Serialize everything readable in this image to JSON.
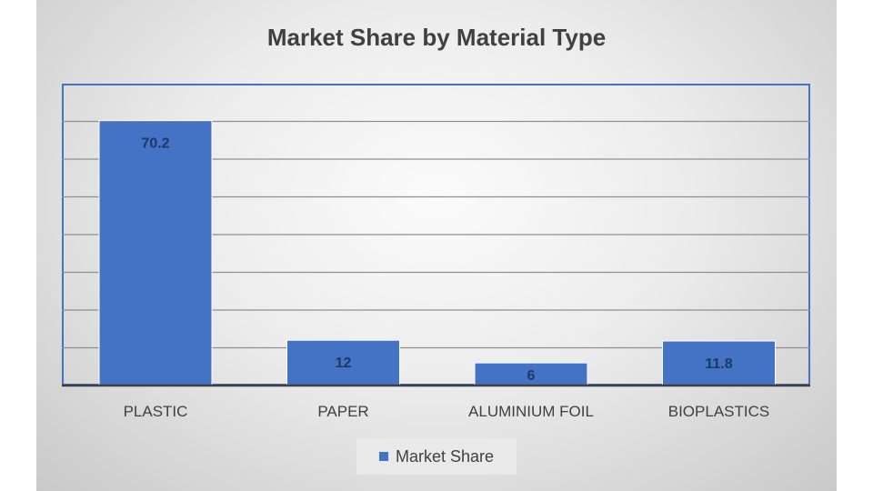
{
  "chart_data": {
    "type": "bar",
    "title": "Market Share by Material Type",
    "categories": [
      "PLASTIC",
      "PAPER",
      "ALUMINIUM FOIL",
      "BIOPLASTICS"
    ],
    "series": [
      {
        "name": "Market Share",
        "values": [
          70.2,
          12,
          6,
          11.8
        ]
      }
    ],
    "ylim": [
      0,
      70
    ],
    "grid": true,
    "legend": "bottom",
    "colors": {
      "bar": "#4472c4",
      "label": "#1f3864",
      "grid": "#8f8f8f",
      "axis": "#404040"
    }
  }
}
